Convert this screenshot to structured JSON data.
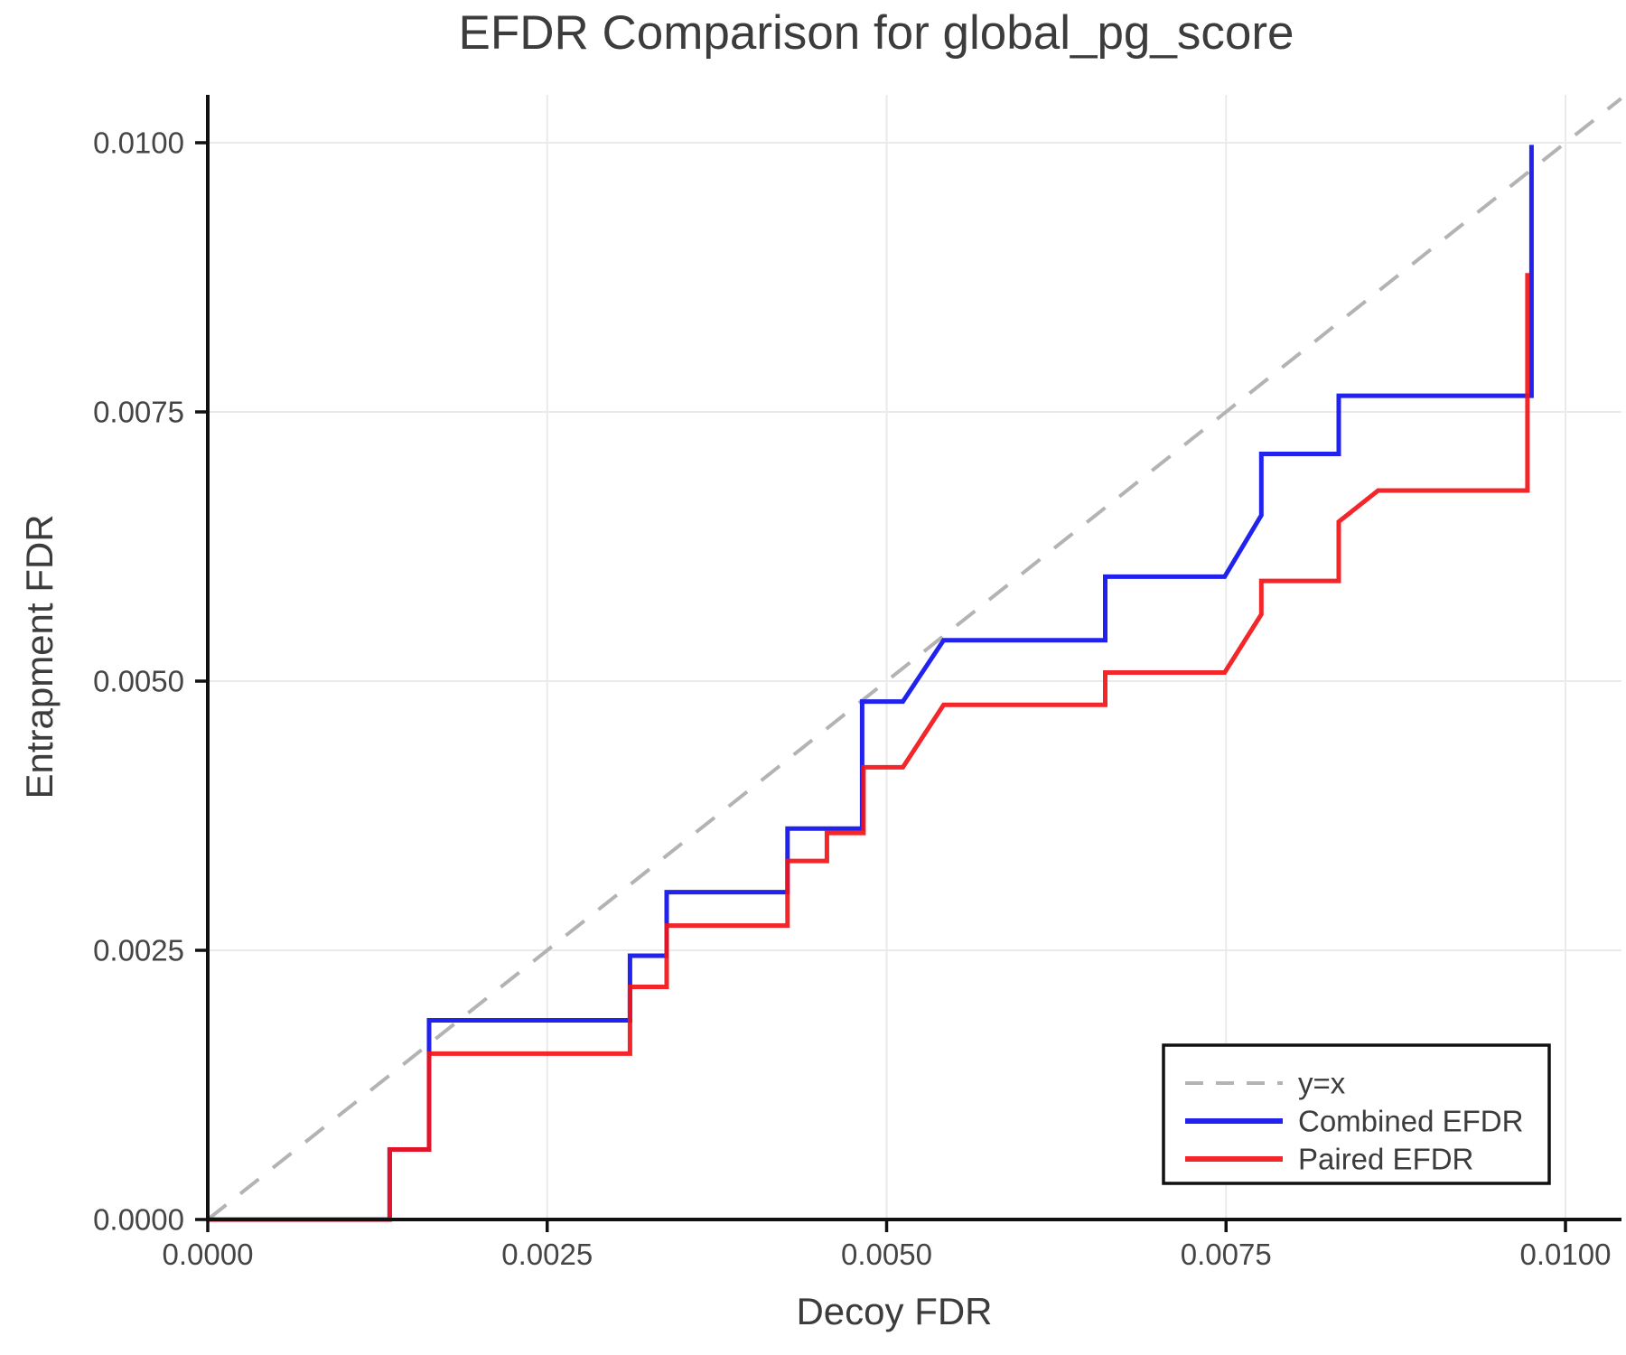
{
  "chart_data": {
    "type": "line",
    "title": "EFDR Comparison for global_pg_score",
    "xlabel": "Decoy FDR",
    "ylabel": "Entrapment FDR",
    "xlim": [
      0,
      0.01041
    ],
    "ylim": [
      0,
      0.010445
    ],
    "grid": true,
    "legend_position": "lower right",
    "x_ticks": [
      0,
      0.0025,
      0.005,
      0.0075,
      0.01
    ],
    "x_tick_labels": [
      "0.0000",
      "0.0025",
      "0.0050",
      "0.0075",
      "0.0100"
    ],
    "y_ticks": [
      0,
      0.0025,
      0.005,
      0.0075,
      0.01
    ],
    "y_tick_labels": [
      "0.0000",
      "0.0025",
      "0.0050",
      "0.0075",
      "0.0100"
    ],
    "series": [
      {
        "name": "y=x",
        "kind": "reference-diagonal",
        "color": "#b3b3b3",
        "width": 4,
        "dash": "26 20",
        "opacity": 1,
        "points": [
          [
            0,
            0
          ],
          [
            0.01041,
            0.01041
          ]
        ]
      },
      {
        "name": "Combined EFDR",
        "kind": "step-curve",
        "color": "#2222ee",
        "width": 5,
        "dash": "",
        "opacity": 1,
        "points": [
          [
            0,
            0
          ],
          [
            0.00134,
            0
          ],
          [
            0.00134,
            0.00065
          ],
          [
            0.00163,
            0.00065
          ],
          [
            0.00163,
            0.00185
          ],
          [
            0.00311,
            0.00185
          ],
          [
            0.00311,
            0.00245
          ],
          [
            0.00338,
            0.00245
          ],
          [
            0.00338,
            0.00304
          ],
          [
            0.00427,
            0.00304
          ],
          [
            0.00427,
            0.00363
          ],
          [
            0.00482,
            0.00363
          ],
          [
            0.00482,
            0.00481
          ],
          [
            0.00512,
            0.00481
          ],
          [
            0.00542,
            0.00538
          ],
          [
            0.00661,
            0.00538
          ],
          [
            0.00661,
            0.00597
          ],
          [
            0.00749,
            0.00597
          ],
          [
            0.00776,
            0.00654
          ],
          [
            0.00776,
            0.00711
          ],
          [
            0.00833,
            0.00711
          ],
          [
            0.00833,
            0.00765
          ],
          [
            0.00975,
            0.00765
          ],
          [
            0.00975,
            0.00998
          ]
        ]
      },
      {
        "name": "Paired EFDR",
        "kind": "step-curve",
        "color": "#f21318",
        "width": 5,
        "dash": "",
        "opacity": 0.92,
        "points": [
          [
            0,
            0
          ],
          [
            0.00134,
            0
          ],
          [
            0.00134,
            0.00065
          ],
          [
            0.00163,
            0.00065
          ],
          [
            0.00163,
            0.00154
          ],
          [
            0.00311,
            0.00154
          ],
          [
            0.00311,
            0.00216
          ],
          [
            0.00338,
            0.00216
          ],
          [
            0.00338,
            0.00273
          ],
          [
            0.00427,
            0.00273
          ],
          [
            0.00427,
            0.00333
          ],
          [
            0.00456,
            0.00333
          ],
          [
            0.00456,
            0.00359
          ],
          [
            0.00483,
            0.00359
          ],
          [
            0.00483,
            0.0042
          ],
          [
            0.00512,
            0.0042
          ],
          [
            0.00542,
            0.00478
          ],
          [
            0.00661,
            0.00478
          ],
          [
            0.00661,
            0.00508
          ],
          [
            0.00749,
            0.00508
          ],
          [
            0.00776,
            0.00562
          ],
          [
            0.00776,
            0.00593
          ],
          [
            0.00833,
            0.00593
          ],
          [
            0.00833,
            0.00648
          ],
          [
            0.00862,
            0.00677
          ],
          [
            0.00972,
            0.00677
          ],
          [
            0.00972,
            0.00879
          ]
        ]
      }
    ],
    "legend_entries": [
      "y=x",
      "Combined EFDR",
      "Paired EFDR"
    ]
  },
  "colors": {
    "spine": "#111111",
    "grid": "#eaeaea",
    "tick_text": "#454545",
    "label_text": "#3c3c3c",
    "legend_border": "#111111",
    "legend_bg": "#ffffff"
  }
}
